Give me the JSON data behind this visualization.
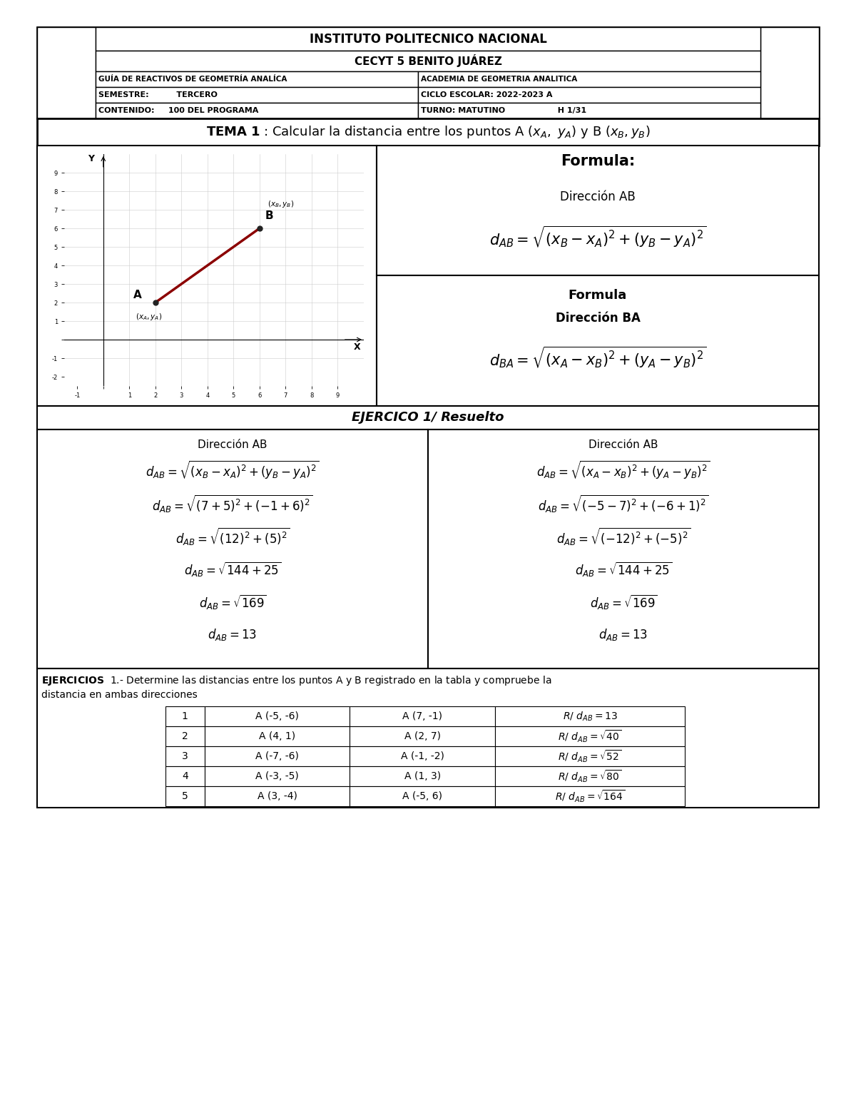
{
  "title_ipn": "INSTITUTO POLITECNICO NACIONAL",
  "title_cecyt": "CECYT 5 BENITO JUÁREZ",
  "header_left1": "GUÍA DE REACTIVOS DE GEOMETRÍA ANALÍCA",
  "header_right1": "ACADEMIA DE GEOMETRIA ANALITICA",
  "header_left2": "SEMESTRE:          TERCERO",
  "header_right2": "CICLO ESCOLAR: 2022-2023 A",
  "header_left3": "CONTENIDO:     100 DEL PROGRAMA",
  "header_right3": "TURNO: MATUTINO                   H 1/31",
  "formula_ab": "$d_{AB} = \\sqrt{(x_B - x_A)^2 + (y_B - y_A)^2}$",
  "formula_ba": "$d_{BA} = \\sqrt{(x_A - x_B)^2 + (y_A - y_B)^2}$",
  "left_steps": [
    "$d_{AB} = \\sqrt{(x_B - x_A)^2 + (y_B - y_A)^2}$",
    "$d_{AB} = \\sqrt{(7+5)^2+(-1+6)^2}$",
    "$d_{AB} = \\sqrt{(12)^2+(5)^2}$",
    "$d_{AB} = \\sqrt{144+25}$",
    "$d_{AB} = \\sqrt{169}$",
    "$d_{AB} = 13$"
  ],
  "right_steps": [
    "$d_{AB} = \\sqrt{(x_A - x_B)^2 + (y_A - y_B)^2}$",
    "$d_{AB} = \\sqrt{(-5-7)^2+(-6+1)^2}$",
    "$d_{AB} = \\sqrt{(-12)^2+(-5)^2}$",
    "$d_{AB} = \\sqrt{144+25}$",
    "$d_{AB} = \\sqrt{169}$",
    "$d_{AB} = 13$"
  ],
  "table_data": [
    [
      "1",
      "A (-5, -6)",
      "A (7, -1)",
      "$R/\\ d_{AB} =13$"
    ],
    [
      "2",
      "A (4, 1)",
      "A (2, 7)",
      "$R/\\ d_{AB} = \\sqrt{40}$"
    ],
    [
      "3",
      "A (-7, -6)",
      "A (-1, -2)",
      "$R/\\ d_{AB} = \\sqrt{52}$"
    ],
    [
      "4",
      "A (-3, -5)",
      "A (1, 3)",
      "$R/\\ d_{AB} = \\sqrt{80}$"
    ],
    [
      "5",
      "A (3, -4)",
      "A (-5, 6)",
      "$R/\\ d_{AB} = \\sqrt{164}$"
    ]
  ],
  "background": "#ffffff",
  "graph_point_A": [
    2,
    2
  ],
  "graph_point_B": [
    6,
    6
  ],
  "line_color": "#8B0000",
  "fig_width": 12.0,
  "fig_height": 15.53,
  "dpi": 100
}
